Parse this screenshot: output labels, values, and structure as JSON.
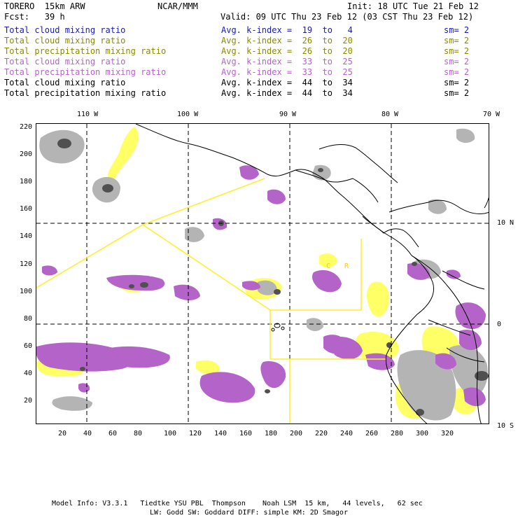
{
  "header": {
    "model": "TORERO  15km ARW",
    "org": "NCAR/MMM",
    "init": "Init: 18 UTC Tue 21 Feb 12",
    "fcst": "Fcst:   39 h",
    "valid": "Valid: 09 UTC Thu 23 Feb 12 (03 CST Thu 23 Feb 12)"
  },
  "legend": [
    {
      "field": "Total cloud mixing ratio",
      "k": "Avg. k-index =  19  to   4",
      "sm": "sm= 2",
      "color": "#1a1ab0"
    },
    {
      "field": "Total cloud mixing ratio",
      "k": "Avg. k-index =  26  to  20",
      "sm": "sm= 2",
      "color": "#8a8a00"
    },
    {
      "field": "Total precipitation mixing ratio",
      "k": "Avg. k-index =  26  to  20",
      "sm": "sm= 2",
      "color": "#8a8a00"
    },
    {
      "field": "Total cloud mixing ratio",
      "k": "Avg. k-index =  33  to  25",
      "sm": "sm= 2",
      "color": "#b464c8"
    },
    {
      "field": "Total precipitation mixing ratio",
      "k": "Avg. k-index =  33  to  25",
      "sm": "sm= 2",
      "color": "#b464c8"
    },
    {
      "field": "Total cloud mixing ratio",
      "k": "Avg. k-index =  44  to  34",
      "sm": "sm= 2",
      "color": "#000000"
    },
    {
      "field": "Total precipitation mixing ratio",
      "k": "Avg. k-index =  44  to  34",
      "sm": "sm= 2",
      "color": "#000000"
    }
  ],
  "top_lon_labels": [
    "110 W",
    "100 W",
    "90 W",
    "80 W",
    "70 W"
  ],
  "right_lat_labels": [
    "10 N",
    "0",
    "10 S"
  ],
  "left_ticks": [
    "220",
    "200",
    "180",
    "160",
    "140",
    "120",
    "100",
    "80",
    "60",
    "40",
    "20"
  ],
  "bottom_ticks": [
    "20",
    "40",
    "60",
    "80",
    "100",
    "120",
    "140",
    "160",
    "180",
    "200",
    "220",
    "240",
    "260",
    "280",
    "300",
    "320"
  ],
  "map_labels": [
    "C",
    "R"
  ],
  "footer": {
    "line1": "Model Info: V3.3.1   Tiedtke YSU PBL  Thompson    Noah LSM  15 km,   44 levels,   62 sec",
    "line2": "LW: Godd SW: Goddard DIFF: simple KM: 2D Smagor"
  },
  "colors": {
    "yellow": "#ffff66",
    "purple": "#b464c8",
    "gray": "#a0a0a0",
    "box": "#ffff33"
  }
}
